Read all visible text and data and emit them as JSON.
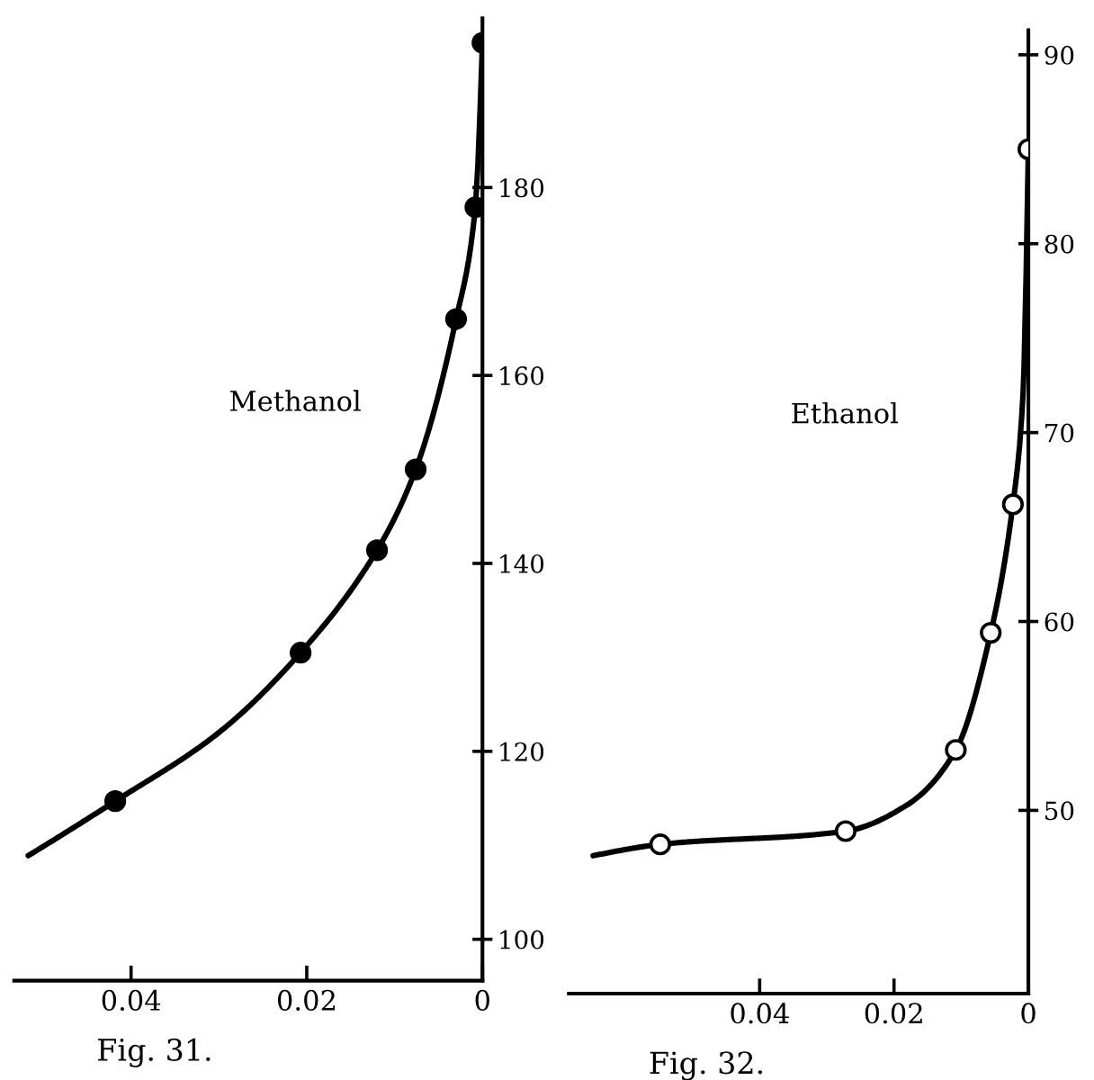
{
  "chart_data": [
    {
      "type": "line",
      "annotations": [
        "Methanol",
        "Fig. 31."
      ],
      "xlim": [
        0.0533,
        0
      ],
      "ylim": [
        95.6,
        198
      ],
      "xticks": [
        0.04,
        0.02,
        0
      ],
      "yticks": [
        100,
        120,
        140,
        160,
        180
      ],
      "grid": false,
      "legend": false,
      "series": [
        {
          "color": "#000000",
          "marker": "none",
          "x": [
            0.0517,
            0.0418,
            0.03,
            0.0207,
            0.012,
            0.0076,
            0.003,
            0.0008,
            0
          ],
          "values": [
            108.9,
            114.7,
            122,
            130.5,
            141.4,
            150,
            166,
            178,
            195.4
          ]
        },
        {
          "type": "scatter",
          "color": "#000000",
          "marker": "circle",
          "x": [
            0.0418,
            0.0207,
            0.012,
            0.0076,
            0.003,
            0.0008,
            0
          ],
          "values": [
            114.7,
            130.5,
            141.4,
            150,
            166,
            177.9,
            195.4
          ]
        }
      ]
    },
    {
      "type": "line",
      "annotations": [
        "Ethanol",
        "Fig. 32."
      ],
      "xlim": [
        0.0684,
        0
      ],
      "ylim": [
        40.3,
        91.3
      ],
      "xticks": [
        0.04,
        0.02,
        0
      ],
      "yticks": [
        50,
        60,
        70,
        80,
        90
      ],
      "grid": false,
      "legend": false,
      "series": [
        {
          "color": "#000000",
          "marker": "none",
          "x": [
            0.0648,
            0.0548,
            0.0272,
            0.018,
            0.0108,
            0.0056,
            0.0023,
            0.0008,
            0
          ],
          "values": [
            47.6,
            48.2,
            48.9,
            50.3,
            53.2,
            59.4,
            66.2,
            72,
            85
          ]
        },
        {
          "type": "scatter",
          "color": "#ffffff",
          "marker": "circle",
          "x": [
            0.0548,
            0.0272,
            0.0108,
            0.0056,
            0.0023,
            0
          ],
          "values": [
            48.2,
            48.9,
            53.2,
            59.4,
            66.2,
            85
          ]
        }
      ]
    }
  ]
}
